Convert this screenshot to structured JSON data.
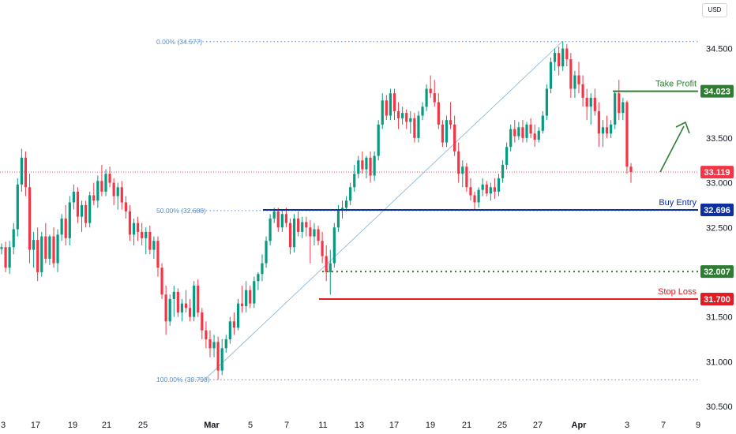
{
  "currency_button": "USD",
  "colors": {
    "up": "#089981",
    "down": "#f23645",
    "take_profit": "#2e7d32",
    "buy_entry": "#0d2f9f",
    "stop_loss": "#e31b23",
    "fib": "#5b8ec9",
    "arrow": "#2e7d32",
    "current": "#f23645"
  },
  "chart_data": {
    "type": "candlestick",
    "ylim": [
      30.5,
      34.7
    ],
    "y_ticks": [
      30.5,
      31.0,
      31.5,
      32.0,
      32.5,
      33.0,
      33.5,
      34.0,
      34.5
    ],
    "y_tick_labels": [
      "30.500",
      "31.000",
      "31.500",
      "32.000",
      "32.500",
      "33.000",
      "33.500",
      "34.000",
      "34.500"
    ],
    "x_tick_labels": [
      "3",
      "17",
      "19",
      "21",
      "25",
      "Mar",
      "5",
      "7",
      "11",
      "13",
      "17",
      "19",
      "21",
      "25",
      "27",
      "Apr",
      "3",
      "7",
      "9"
    ],
    "fib_levels": [
      {
        "label": "0.00% (34.577)",
        "value": 34.577
      },
      {
        "label": "50.00% (32.688)",
        "value": 32.688
      },
      {
        "label": "100.00% (30.798)",
        "value": 30.798
      }
    ],
    "levels": [
      {
        "label": "Take Profit",
        "value": 34.023,
        "badge": "34.023",
        "style": "solid",
        "color_key": "take_profit"
      },
      {
        "label": "Buy Entry",
        "value": 32.696,
        "badge": "32.696",
        "style": "solid",
        "color_key": "buy_entry"
      },
      {
        "label": "",
        "value": 32.007,
        "badge": "32.007",
        "style": "dotted",
        "color_key": "take_profit"
      },
      {
        "label": "Stop Loss",
        "value": 31.7,
        "badge": "31.700",
        "style": "solid",
        "color_key": "stop_loss"
      }
    ],
    "current_price": {
      "value": 33.119,
      "badge": "33.119"
    },
    "candles": [
      [
        32.26,
        32.32,
        32.2,
        32.28
      ],
      [
        32.28,
        32.34,
        32.0,
        32.05
      ],
      [
        32.05,
        32.35,
        31.98,
        32.28
      ],
      [
        32.28,
        32.55,
        32.2,
        32.48
      ],
      [
        32.48,
        33.05,
        32.4,
        32.98
      ],
      [
        32.98,
        33.38,
        32.9,
        33.28
      ],
      [
        33.28,
        33.35,
        32.85,
        32.95
      ],
      [
        32.95,
        33.1,
        32.1,
        32.25
      ],
      [
        32.25,
        32.45,
        32.05,
        32.36
      ],
      [
        32.36,
        32.5,
        31.9,
        32.0
      ],
      [
        32.0,
        32.45,
        31.95,
        32.4
      ],
      [
        32.4,
        32.55,
        32.1,
        32.15
      ],
      [
        32.15,
        32.42,
        32.08,
        32.4
      ],
      [
        32.4,
        32.5,
        32.05,
        32.1
      ],
      [
        32.1,
        32.48,
        32.0,
        32.42
      ],
      [
        32.42,
        32.65,
        32.35,
        32.6
      ],
      [
        32.6,
        32.75,
        32.3,
        32.38
      ],
      [
        32.38,
        32.85,
        32.3,
        32.78
      ],
      [
        32.78,
        32.98,
        32.7,
        32.9
      ],
      [
        32.9,
        32.95,
        32.55,
        32.62
      ],
      [
        32.62,
        32.8,
        32.45,
        32.75
      ],
      [
        32.75,
        32.8,
        32.5,
        32.55
      ],
      [
        32.55,
        32.9,
        32.5,
        32.86
      ],
      [
        32.86,
        33.0,
        32.75,
        32.8
      ],
      [
        32.8,
        33.08,
        32.72,
        33.02
      ],
      [
        33.02,
        33.2,
        32.85,
        32.9
      ],
      [
        32.9,
        33.15,
        32.85,
        33.1
      ],
      [
        33.1,
        33.18,
        32.95,
        33.0
      ],
      [
        33.0,
        33.05,
        32.75,
        32.85
      ],
      [
        32.85,
        33.0,
        32.7,
        32.95
      ],
      [
        32.95,
        33.02,
        32.7,
        32.78
      ],
      [
        32.78,
        32.85,
        32.6,
        32.68
      ],
      [
        32.68,
        32.75,
        32.35,
        32.42
      ],
      [
        32.42,
        32.6,
        32.3,
        32.55
      ],
      [
        32.55,
        32.62,
        32.35,
        32.45
      ],
      [
        32.45,
        32.55,
        32.3,
        32.38
      ],
      [
        32.38,
        32.5,
        32.2,
        32.45
      ],
      [
        32.45,
        32.52,
        32.2,
        32.25
      ],
      [
        32.25,
        32.4,
        32.15,
        32.35
      ],
      [
        32.35,
        32.4,
        31.95,
        32.05
      ],
      [
        32.05,
        32.1,
        31.7,
        31.75
      ],
      [
        31.75,
        31.85,
        31.3,
        31.45
      ],
      [
        31.45,
        31.75,
        31.4,
        31.7
      ],
      [
        31.7,
        31.85,
        31.5,
        31.78
      ],
      [
        31.78,
        31.82,
        31.5,
        31.55
      ],
      [
        31.55,
        31.7,
        31.45,
        31.65
      ],
      [
        31.65,
        31.8,
        31.55,
        31.6
      ],
      [
        31.6,
        31.7,
        31.45,
        31.5
      ],
      [
        31.5,
        31.9,
        31.45,
        31.85
      ],
      [
        31.85,
        31.92,
        31.5,
        31.55
      ],
      [
        31.55,
        31.6,
        31.25,
        31.35
      ],
      [
        31.35,
        31.45,
        31.15,
        31.25
      ],
      [
        31.25,
        31.35,
        31.05,
        31.15
      ],
      [
        31.15,
        31.3,
        31.05,
        31.22
      ],
      [
        31.22,
        31.28,
        30.8,
        30.9
      ],
      [
        30.9,
        31.25,
        30.85,
        31.15
      ],
      [
        31.15,
        31.3,
        31.1,
        31.25
      ],
      [
        31.25,
        31.5,
        31.2,
        31.45
      ],
      [
        31.45,
        31.55,
        31.3,
        31.38
      ],
      [
        31.38,
        31.7,
        31.35,
        31.65
      ],
      [
        31.65,
        31.85,
        31.55,
        31.62
      ],
      [
        31.62,
        31.9,
        31.55,
        31.8
      ],
      [
        31.8,
        31.85,
        31.6,
        31.65
      ],
      [
        31.65,
        31.95,
        31.6,
        31.9
      ],
      [
        31.9,
        32.0,
        31.8,
        31.98
      ],
      [
        31.98,
        32.2,
        31.9,
        32.1
      ],
      [
        32.1,
        32.4,
        32.05,
        32.35
      ],
      [
        32.35,
        32.65,
        32.3,
        32.6
      ],
      [
        32.6,
        32.72,
        32.55,
        32.68
      ],
      [
        32.68,
        32.72,
        32.45,
        32.5
      ],
      [
        32.5,
        32.7,
        32.45,
        32.65
      ],
      [
        32.65,
        32.72,
        32.5,
        32.55
      ],
      [
        32.55,
        32.6,
        32.2,
        32.28
      ],
      [
        32.28,
        32.65,
        32.22,
        32.6
      ],
      [
        32.6,
        32.68,
        32.4,
        32.45
      ],
      [
        32.45,
        32.62,
        32.38,
        32.56
      ],
      [
        32.56,
        32.62,
        32.4,
        32.5
      ],
      [
        32.5,
        32.58,
        32.1,
        32.4
      ],
      [
        32.4,
        32.55,
        32.3,
        32.48
      ],
      [
        32.48,
        32.52,
        32.3,
        32.35
      ],
      [
        32.35,
        32.45,
        32.1,
        32.18
      ],
      [
        32.18,
        32.3,
        31.9,
        32.0
      ],
      [
        32.0,
        32.25,
        31.75,
        32.1
      ],
      [
        32.1,
        32.55,
        32.05,
        32.5
      ],
      [
        32.5,
        32.75,
        32.45,
        32.7
      ],
      [
        32.7,
        32.8,
        32.6,
        32.72
      ],
      [
        32.72,
        32.85,
        32.68,
        32.8
      ],
      [
        32.8,
        33.0,
        32.75,
        32.95
      ],
      [
        32.95,
        33.2,
        32.9,
        33.1
      ],
      [
        33.1,
        33.3,
        33.05,
        33.25
      ],
      [
        33.25,
        33.35,
        33.1,
        33.15
      ],
      [
        33.15,
        33.3,
        33.05,
        33.28
      ],
      [
        33.28,
        33.35,
        33.0,
        33.08
      ],
      [
        33.08,
        33.35,
        33.02,
        33.3
      ],
      [
        33.3,
        33.7,
        33.25,
        33.65
      ],
      [
        33.65,
        34.0,
        33.6,
        33.92
      ],
      [
        33.92,
        33.98,
        33.7,
        33.75
      ],
      [
        33.75,
        34.05,
        33.7,
        34.0
      ],
      [
        34.0,
        34.05,
        33.7,
        33.8
      ],
      [
        33.8,
        33.9,
        33.6,
        33.72
      ],
      [
        33.72,
        33.85,
        33.65,
        33.78
      ],
      [
        33.78,
        33.82,
        33.6,
        33.68
      ],
      [
        33.68,
        33.8,
        33.55,
        33.72
      ],
      [
        33.72,
        33.78,
        33.45,
        33.5
      ],
      [
        33.5,
        33.8,
        33.45,
        33.75
      ],
      [
        33.75,
        33.9,
        33.7,
        33.85
      ],
      [
        33.85,
        34.1,
        33.8,
        34.05
      ],
      [
        34.05,
        34.2,
        33.95,
        34.0
      ],
      [
        34.0,
        34.15,
        33.85,
        33.9
      ],
      [
        33.9,
        34.0,
        33.6,
        33.65
      ],
      [
        33.65,
        33.7,
        33.4,
        33.45
      ],
      [
        33.45,
        33.75,
        33.4,
        33.7
      ],
      [
        33.7,
        33.9,
        33.6,
        33.65
      ],
      [
        33.65,
        33.75,
        33.3,
        33.35
      ],
      [
        33.35,
        33.45,
        33.0,
        33.1
      ],
      [
        33.1,
        33.25,
        32.95,
        33.18
      ],
      [
        33.18,
        33.22,
        32.9,
        32.95
      ],
      [
        32.95,
        33.05,
        32.8,
        32.86
      ],
      [
        32.86,
        32.9,
        32.7,
        32.78
      ],
      [
        32.78,
        32.95,
        32.72,
        32.92
      ],
      [
        32.92,
        33.05,
        32.85,
        32.98
      ],
      [
        32.98,
        33.02,
        32.85,
        32.88
      ],
      [
        32.88,
        33.0,
        32.8,
        32.95
      ],
      [
        32.95,
        33.05,
        32.82,
        32.9
      ],
      [
        32.9,
        33.1,
        32.85,
        33.05
      ],
      [
        33.05,
        33.25,
        33.0,
        33.2
      ],
      [
        33.2,
        33.45,
        33.15,
        33.4
      ],
      [
        33.4,
        33.65,
        33.35,
        33.6
      ],
      [
        33.6,
        33.7,
        33.45,
        33.52
      ],
      [
        33.52,
        33.68,
        33.48,
        33.62
      ],
      [
        33.62,
        33.7,
        33.45,
        33.5
      ],
      [
        33.5,
        33.68,
        33.45,
        33.65
      ],
      [
        33.65,
        33.72,
        33.5,
        33.55
      ],
      [
        33.55,
        33.65,
        33.4,
        33.48
      ],
      [
        33.48,
        33.62,
        33.45,
        33.58
      ],
      [
        33.58,
        33.8,
        33.55,
        33.75
      ],
      [
        33.75,
        34.1,
        33.7,
        34.05
      ],
      [
        34.05,
        34.4,
        34.0,
        34.35
      ],
      [
        34.35,
        34.5,
        34.25,
        34.45
      ],
      [
        34.45,
        34.52,
        34.2,
        34.3
      ],
      [
        34.3,
        34.58,
        34.25,
        34.5
      ],
      [
        34.5,
        34.55,
        34.3,
        34.38
      ],
      [
        34.38,
        34.45,
        33.95,
        34.05
      ],
      [
        34.05,
        34.25,
        33.95,
        34.2
      ],
      [
        34.2,
        34.35,
        34.0,
        34.1
      ],
      [
        34.1,
        34.2,
        33.85,
        33.95
      ],
      [
        33.95,
        34.05,
        33.7,
        33.85
      ],
      [
        33.85,
        34.0,
        33.65,
        33.95
      ],
      [
        33.95,
        34.05,
        33.75,
        33.8
      ],
      [
        33.8,
        33.9,
        33.4,
        33.55
      ],
      [
        33.55,
        33.7,
        33.4,
        33.62
      ],
      [
        33.62,
        33.75,
        33.5,
        33.55
      ],
      [
        33.55,
        33.7,
        33.5,
        33.65
      ],
      [
        33.65,
        34.02,
        33.6,
        34.0
      ],
      [
        34.0,
        34.15,
        33.7,
        33.78
      ],
      [
        33.78,
        33.95,
        33.7,
        33.9
      ],
      [
        33.9,
        33.92,
        33.1,
        33.18
      ],
      [
        33.18,
        33.22,
        33.0,
        33.12
      ]
    ]
  }
}
